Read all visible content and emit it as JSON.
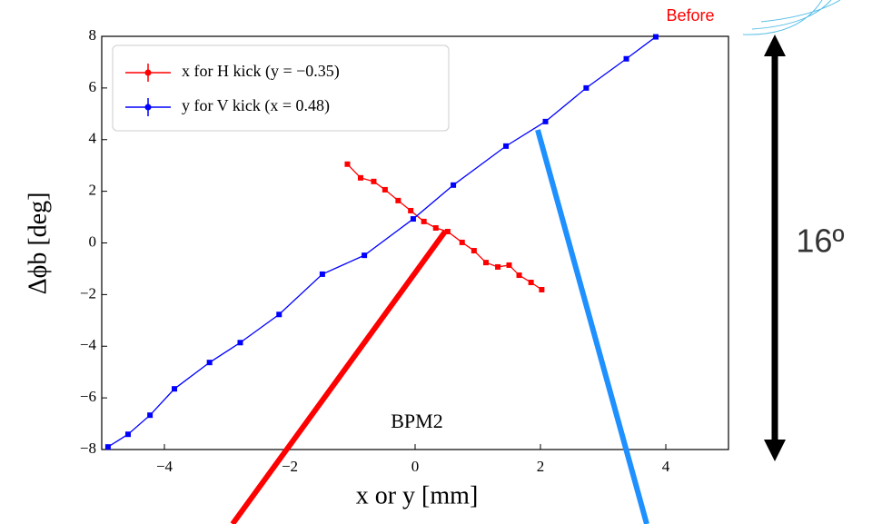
{
  "chart_data": {
    "type": "line",
    "xlabel": "x or y [mm]",
    "ylabel": "Δϕb [deg]",
    "annotations": [
      "BPM2",
      "16º",
      "Before"
    ],
    "xlim": [
      -5,
      5
    ],
    "ylim": [
      -8,
      8
    ],
    "xticks": [
      {
        "value": -4,
        "label": "−4"
      },
      {
        "value": -2,
        "label": "−2"
      },
      0,
      2,
      4
    ],
    "yticks": [
      {
        "value": -8,
        "label": "−8"
      },
      {
        "value": -6,
        "label": "−6"
      },
      {
        "value": -4,
        "label": "−4"
      },
      {
        "value": -2,
        "label": "−2"
      },
      0,
      2,
      4,
      6,
      8
    ],
    "legend": "upper left",
    "series": [
      {
        "name": "x for H kick (y = −0.35)",
        "color": "#ff0000",
        "x": [
          -1.08,
          -0.87,
          -0.66,
          -0.48,
          -0.27,
          -0.07,
          0.14,
          0.33,
          0.52,
          0.75,
          0.94,
          1.13,
          1.32,
          1.5,
          1.66,
          1.85,
          2.02
        ],
        "values": [
          3.05,
          2.52,
          2.38,
          2.06,
          1.64,
          1.25,
          0.83,
          0.58,
          0.44,
          0.02,
          -0.3,
          -0.76,
          -0.93,
          -0.86,
          -1.25,
          -1.53,
          -1.81
        ]
      },
      {
        "name": "y for V kick (x = 0.48)",
        "color": "#0000ff",
        "x": [
          -4.9,
          -4.58,
          -4.23,
          -3.84,
          -3.28,
          -2.79,
          -2.17,
          -1.48,
          -0.81,
          -0.03,
          0.61,
          1.45,
          2.08,
          2.73,
          3.37,
          3.84
        ],
        "values": [
          -7.9,
          -7.41,
          -6.67,
          -5.65,
          -4.63,
          -3.86,
          -2.77,
          -1.21,
          -0.48,
          0.93,
          2.24,
          3.75,
          4.7,
          6.0,
          7.13,
          7.98
        ]
      }
    ]
  }
}
